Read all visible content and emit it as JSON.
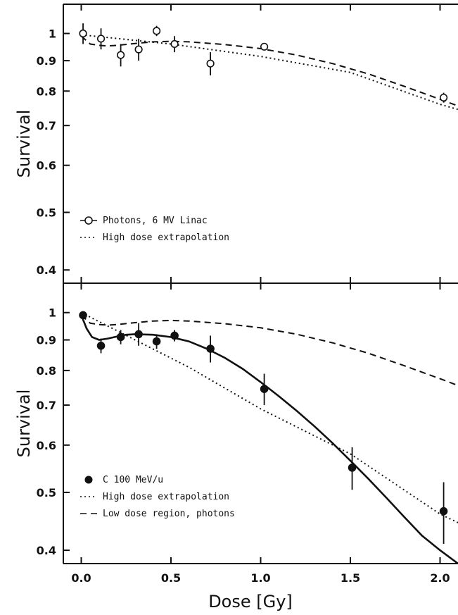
{
  "colors": {
    "ink": "#111111",
    "background": "#ffffff"
  },
  "xlabel": "Dose [Gy]",
  "chart_data": [
    {
      "type": "scatter",
      "ylabel": "Survival",
      "yscale": "log",
      "xlim": [
        -0.1,
        2.1
      ],
      "ylim": [
        0.38,
        1.12
      ],
      "y_ticks": [
        1,
        0.9,
        0.8,
        0.7,
        0.6,
        0.5,
        0.4
      ],
      "y_tick_labels": [
        "1",
        "0.9",
        "0.8",
        "0.7",
        "0.6",
        "0.5",
        "0.4"
      ],
      "x_ticks": [
        0,
        0.5,
        1.0,
        1.5,
        2.0
      ],
      "legend_position": "bottom-left",
      "series": [
        {
          "name": "Photons, 6 MV Linac",
          "style": "points-open",
          "x": [
            0.01,
            0.11,
            0.22,
            0.32,
            0.42,
            0.52,
            0.72,
            1.02,
            2.02
          ],
          "y": [
            1.0,
            0.98,
            0.92,
            0.94,
            1.01,
            0.96,
            0.89,
            0.95,
            0.78
          ],
          "err": [
            0.04,
            0.04,
            0.04,
            0.04,
            0.02,
            0.03,
            0.04,
            0.01,
            0.015
          ]
        },
        {
          "name": "Photons, 6 MV Linac fit",
          "style": "dashed",
          "x": [
            0,
            0.05,
            0.1,
            0.15,
            0.2,
            0.3,
            0.4,
            0.5,
            0.6,
            0.8,
            1.0,
            1.2,
            1.4,
            1.6,
            1.8,
            2.0,
            2.1
          ],
          "y": [
            0.99,
            0.96,
            0.955,
            0.953,
            0.955,
            0.962,
            0.968,
            0.97,
            0.968,
            0.958,
            0.943,
            0.92,
            0.89,
            0.855,
            0.815,
            0.775,
            0.755
          ]
        },
        {
          "name": "High dose extrapolation",
          "style": "dotted",
          "x": [
            0,
            0.5,
            1.0,
            1.5,
            2.0,
            2.1
          ],
          "y": [
            0.995,
            0.96,
            0.915,
            0.86,
            0.76,
            0.745
          ]
        }
      ]
    },
    {
      "type": "scatter",
      "ylabel": "Survival",
      "yscale": "log",
      "xlim": [
        -0.1,
        2.1
      ],
      "ylim": [
        0.38,
        1.12
      ],
      "y_ticks": [
        1,
        0.9,
        0.8,
        0.7,
        0.6,
        0.5,
        0.4
      ],
      "y_tick_labels": [
        "1",
        "0.9",
        "0.8",
        "0.7",
        "0.6",
        "0.5",
        "0.4"
      ],
      "x_ticks": [
        0,
        0.5,
        1.0,
        1.5,
        2.0
      ],
      "x_tick_labels": [
        "0.0",
        "0.5",
        "1.0",
        "1.5",
        "2.0"
      ],
      "legend_position": "bottom-left",
      "series": [
        {
          "name": "C 100 MeV/u",
          "style": "points-filled",
          "x": [
            0.01,
            0.11,
            0.22,
            0.32,
            0.42,
            0.52,
            0.72,
            1.02,
            1.51,
            2.02
          ],
          "y": [
            0.99,
            0.88,
            0.91,
            0.92,
            0.895,
            0.915,
            0.87,
            0.745,
            0.55,
            0.465
          ],
          "err": [
            0.015,
            0.025,
            0.025,
            0.04,
            0.025,
            0.02,
            0.045,
            0.045,
            0.045,
            0.055
          ]
        },
        {
          "name": "C 100 MeV/u fit",
          "style": "solid",
          "x": [
            0,
            0.03,
            0.06,
            0.1,
            0.15,
            0.2,
            0.25,
            0.3,
            0.4,
            0.5,
            0.6,
            0.7,
            0.8,
            0.9,
            1.0,
            1.1,
            1.2,
            1.3,
            1.4,
            1.5,
            1.6,
            1.7,
            1.8,
            1.9,
            2.0,
            2.1
          ],
          "y": [
            0.99,
            0.94,
            0.91,
            0.9,
            0.905,
            0.912,
            0.918,
            0.92,
            0.918,
            0.91,
            0.895,
            0.87,
            0.84,
            0.805,
            0.765,
            0.725,
            0.685,
            0.645,
            0.605,
            0.565,
            0.527,
            0.49,
            0.455,
            0.423,
            0.4,
            0.38
          ]
        },
        {
          "name": "High dose extrapolation",
          "style": "dotted",
          "x": [
            0,
            0.3,
            0.6,
            1.0,
            1.5,
            2.0,
            2.1
          ],
          "y": [
            1.0,
            0.9,
            0.81,
            0.69,
            0.58,
            0.46,
            0.445
          ]
        },
        {
          "name": "Low dose region, photons",
          "style": "dashed",
          "x": [
            0,
            0.05,
            0.1,
            0.15,
            0.2,
            0.3,
            0.4,
            0.5,
            0.6,
            0.8,
            1.0,
            1.2,
            1.4,
            1.6,
            1.8,
            2.0,
            2.1
          ],
          "y": [
            0.99,
            0.96,
            0.955,
            0.953,
            0.955,
            0.962,
            0.968,
            0.97,
            0.968,
            0.958,
            0.943,
            0.92,
            0.89,
            0.855,
            0.815,
            0.775,
            0.755
          ]
        }
      ]
    }
  ]
}
